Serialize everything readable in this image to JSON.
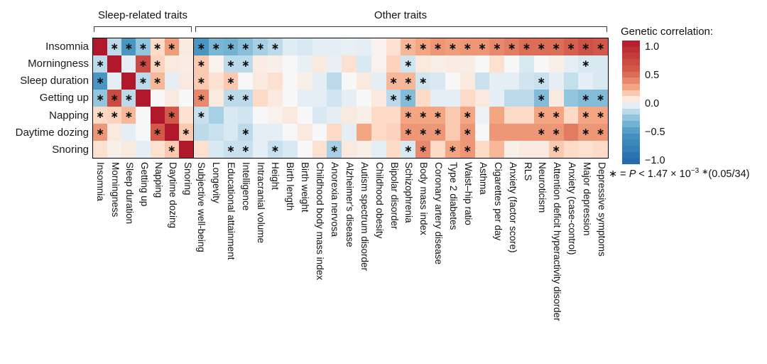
{
  "header": {
    "sleep_group": "Sleep-related traits",
    "other_group": "Other traits"
  },
  "legend": {
    "title": "Genetic correlation:",
    "ticks": [
      "1.0",
      "0.5",
      "0.0",
      "−0.5",
      "−1.0"
    ]
  },
  "annotation": {
    "star": "∗",
    "eq": " = ",
    "p": "P",
    "lt": " < 1.47 × 10",
    "exp": "−3",
    "space": " ",
    "star2": "∗",
    "tail": "(0.05/34)"
  },
  "star_symbol": "∗",
  "chart_data": {
    "type": "heatmap",
    "title": "Genetic correlations between sleep-related traits and other traits",
    "legend_title": "Genetic correlation:",
    "value_range": [
      -1,
      1
    ],
    "significance_note": "* = P < 1.47 × 10−3 *(0.05/34)",
    "colormap": {
      "name": "RdBu-diverging",
      "stops": [
        {
          "v": -1.0,
          "rgb": [
            33,
            102,
            172
          ]
        },
        {
          "v": -0.5,
          "rgb": [
            72,
            150,
            193
          ]
        },
        {
          "v": -0.25,
          "rgb": [
            146,
            197,
            222
          ]
        },
        {
          "v": -0.1,
          "rgb": [
            209,
            229,
            240
          ]
        },
        {
          "v": 0.0,
          "rgb": [
            247,
            247,
            247
          ]
        },
        {
          "v": 0.1,
          "rgb": [
            253,
            219,
            199
          ]
        },
        {
          "v": 0.25,
          "rgb": [
            244,
            165,
            130
          ]
        },
        {
          "v": 0.5,
          "rgb": [
            214,
            96,
            77
          ]
        },
        {
          "v": 1.0,
          "rgb": [
            178,
            24,
            43
          ]
        }
      ]
    },
    "sleep_block_columns": 7,
    "rows": [
      "Insomnia",
      "Morningness",
      "Sleep duration",
      "Getting up",
      "Napping",
      "Daytime dozing",
      "Snoring"
    ],
    "columns": [
      "Insomnia",
      "Morningness",
      "Sleep duration",
      "Getting up",
      "Napping",
      "Daytime dozing",
      "Snoring",
      "Subjective well-being",
      "Longevity",
      "Educational attainment",
      "Intelligence",
      "Intracranial volume",
      "Height",
      "Birth length",
      "Birth weight",
      "Childhood body mass index",
      "Anorexia nervosa",
      "Alzheimer's disease",
      "Autism spectrum disorder",
      "Childhood obesity",
      "Bipolar disorder",
      "Schizophrenia",
      "Body mass index",
      "Coronary artery disease",
      "Type 2 diabetes",
      "Waist–hip ratio",
      "Asthma",
      "Cigarettes per day",
      "Anxiety (factor score)",
      "RLS",
      "Neuroticism",
      "Attention deficit hyperactivity disorder",
      "Anxiety (case-control)",
      "Major depression",
      "Depressive symptoms"
    ],
    "values": [
      [
        1,
        -0.15,
        -0.5,
        -0.25,
        0.1,
        0.28,
        0.05,
        -0.5,
        -0.33,
        -0.35,
        -0.28,
        -0.2,
        -0.15,
        -0.06,
        -0.08,
        -0.05,
        -0.05,
        -0.04,
        -0.05,
        0.02,
        0.08,
        0.2,
        0.25,
        0.3,
        0.28,
        0.3,
        0.3,
        0.35,
        0.4,
        0.45,
        0.45,
        0.45,
        0.5,
        0.6,
        0.55
      ],
      [
        -0.15,
        1,
        -0.05,
        0.65,
        0.12,
        0.05,
        0.04,
        0.15,
        0.02,
        -0.15,
        -0.15,
        0.04,
        0.03,
        0,
        -0.04,
        0.05,
        -0.04,
        0.08,
        -0.08,
        0.02,
        0.12,
        -0.1,
        0.05,
        0.03,
        0.04,
        0.04,
        0,
        0.08,
        0,
        -0.08,
        0,
        0.03,
        -0.05,
        -0.08,
        -0.08
      ],
      [
        -0.5,
        -0.05,
        1,
        -0.15,
        0.2,
        -0.05,
        0.05,
        0.15,
        0.08,
        0.15,
        0,
        0.05,
        0.08,
        0,
        0.03,
        -0.05,
        -0.15,
        0,
        0.05,
        -0.05,
        0.2,
        0.2,
        -0.1,
        -0.08,
        0,
        0.05,
        -0.12,
        -0.05,
        -0.05,
        -0.1,
        -0.12,
        -0.05,
        -0.13,
        -0.05,
        -0.08
      ],
      [
        -0.25,
        0.65,
        -0.15,
        1,
        0,
        0.05,
        0,
        0.35,
        0.05,
        -0.15,
        -0.15,
        0.1,
        0.05,
        0,
        -0.05,
        -0.05,
        -0.1,
        -0.05,
        0,
        0.05,
        -0.15,
        -0.3,
        0.1,
        -0.05,
        -0.05,
        0.1,
        0.05,
        -0.05,
        -0.15,
        -0.15,
        -0.3,
        0.05,
        -0.25,
        -0.3,
        -0.3
      ],
      [
        0.1,
        0.12,
        0.2,
        0,
        1,
        0.55,
        0.08,
        -0.12,
        -0.2,
        -0.08,
        -0.1,
        0,
        0.02,
        0.05,
        0,
        -0.08,
        -0.05,
        0.05,
        0.03,
        0.1,
        0.1,
        0.25,
        0.25,
        0.25,
        0.15,
        0.25,
        -0.03,
        0.25,
        0.1,
        0.1,
        0.25,
        0.25,
        0.1,
        0.25,
        0.25
      ],
      [
        0.3,
        0.05,
        -0.05,
        0,
        0.55,
        1,
        0.15,
        -0.15,
        -0.12,
        -0.08,
        -0.15,
        -0.05,
        -0.05,
        0,
        0.05,
        0,
        0.1,
        -0.05,
        0.25,
        0.1,
        0.12,
        0.3,
        0.3,
        0.3,
        0.15,
        0.3,
        0,
        0.3,
        0.3,
        0.3,
        0.3,
        0.3,
        0.4,
        0.3,
        0.3
      ],
      [
        0.08,
        0.03,
        0.05,
        -0.05,
        0.08,
        0.15,
        1,
        0.08,
        -0.08,
        -0.12,
        -0.12,
        -0.05,
        -0.12,
        -0.08,
        0,
        0.08,
        -0.2,
        0.05,
        0.03,
        -0.05,
        0.1,
        -0.08,
        0.35,
        0.1,
        0.25,
        0.3,
        0.1,
        0.2,
        0.03,
        0.05,
        0.05,
        0.15,
        0.1,
        0.08,
        0.1
      ]
    ],
    "significant": [
      [
        0,
        1,
        1,
        1,
        1,
        1,
        0,
        1,
        1,
        1,
        1,
        1,
        1,
        0,
        0,
        0,
        0,
        0,
        0,
        0,
        0,
        1,
        1,
        1,
        1,
        1,
        1,
        1,
        1,
        1,
        1,
        1,
        1,
        1,
        1
      ],
      [
        1,
        0,
        0,
        1,
        1,
        0,
        0,
        1,
        0,
        1,
        1,
        0,
        0,
        0,
        0,
        0,
        0,
        0,
        0,
        0,
        0,
        1,
        0,
        0,
        0,
        0,
        0,
        0,
        0,
        0,
        0,
        0,
        0,
        1,
        0
      ],
      [
        1,
        0,
        0,
        1,
        1,
        0,
        0,
        1,
        0,
        1,
        0,
        0,
        0,
        0,
        0,
        0,
        0,
        0,
        0,
        0,
        1,
        1,
        1,
        0,
        0,
        0,
        0,
        0,
        0,
        0,
        1,
        0,
        0,
        0,
        0
      ],
      [
        1,
        1,
        1,
        0,
        0,
        0,
        0,
        1,
        0,
        1,
        1,
        0,
        0,
        0,
        0,
        0,
        0,
        0,
        0,
        0,
        1,
        1,
        0,
        0,
        0,
        0,
        0,
        0,
        0,
        0,
        1,
        0,
        0,
        1,
        1
      ],
      [
        1,
        1,
        1,
        0,
        0,
        1,
        0,
        1,
        0,
        0,
        0,
        0,
        0,
        0,
        0,
        0,
        0,
        0,
        0,
        0,
        0,
        1,
        1,
        1,
        0,
        1,
        0,
        0,
        0,
        0,
        1,
        1,
        0,
        1,
        1
      ],
      [
        1,
        0,
        0,
        0,
        1,
        0,
        1,
        0,
        0,
        0,
        1,
        0,
        0,
        0,
        0,
        0,
        0,
        0,
        0,
        0,
        0,
        1,
        1,
        1,
        0,
        1,
        0,
        0,
        0,
        0,
        1,
        1,
        0,
        1,
        1
      ],
      [
        0,
        0,
        0,
        0,
        0,
        1,
        0,
        0,
        0,
        1,
        1,
        0,
        1,
        0,
        0,
        0,
        1,
        0,
        0,
        0,
        0,
        1,
        1,
        0,
        1,
        1,
        0,
        0,
        0,
        0,
        0,
        1,
        0,
        0,
        0
      ]
    ]
  }
}
